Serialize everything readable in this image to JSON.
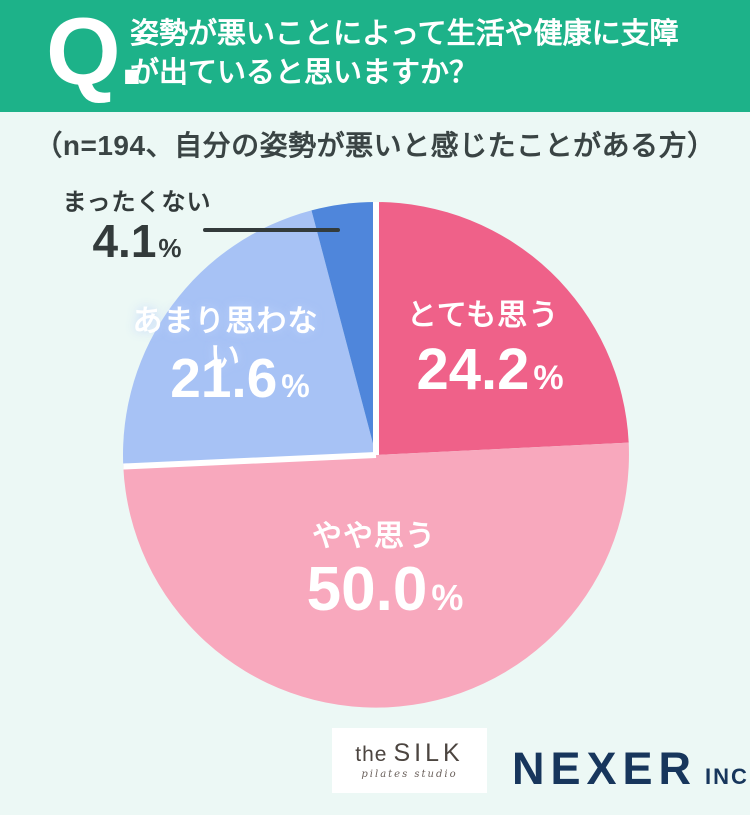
{
  "header": {
    "q_mark": "Q.",
    "question_line1": "姿勢が悪いことによって生活や健康に支障",
    "question_line2": "が出ていると思いますか？"
  },
  "subtitle": "（n=194、自分の姿勢が悪いと感じたことがある方）",
  "chart_data": {
    "type": "pie",
    "title": "姿勢が悪いことによって生活や健康に支障が出ていると思いますか？",
    "sample_note": "n=194、自分の姿勢が悪いと感じたことがある方",
    "unit": "%",
    "direction": "clockwise",
    "start_angle_deg": 0,
    "segments": [
      {
        "label": "とても思う",
        "value": 24.2,
        "value_display": "24.2",
        "color": "#ef6189",
        "group": "agree"
      },
      {
        "label": "やや思う",
        "value": 50.0,
        "value_display": "50.0",
        "color": "#f8a8bd",
        "group": "agree"
      },
      {
        "label": "あまり思わない",
        "value": 21.6,
        "value_display": "21.6",
        "color": "#a7c2f5",
        "group": "disagree"
      },
      {
        "label": "まったくない",
        "value": 4.1,
        "value_display": "4.1",
        "color": "#4f86db",
        "group": "disagree"
      }
    ],
    "percent_sign": "%",
    "separator_color": "#ffffff",
    "legend_position": "none",
    "grid": false
  },
  "footer": {
    "silk": {
      "prefix": "the",
      "name": "SILK",
      "tagline": "pilates studio"
    },
    "nexer": {
      "name": "NEXER",
      "suffix": "INC."
    }
  },
  "colors": {
    "header_bg": "#1db289",
    "page_bg": "#ecf8f5",
    "text_dark": "#333b3b",
    "nexer_navy": "#17365c"
  }
}
